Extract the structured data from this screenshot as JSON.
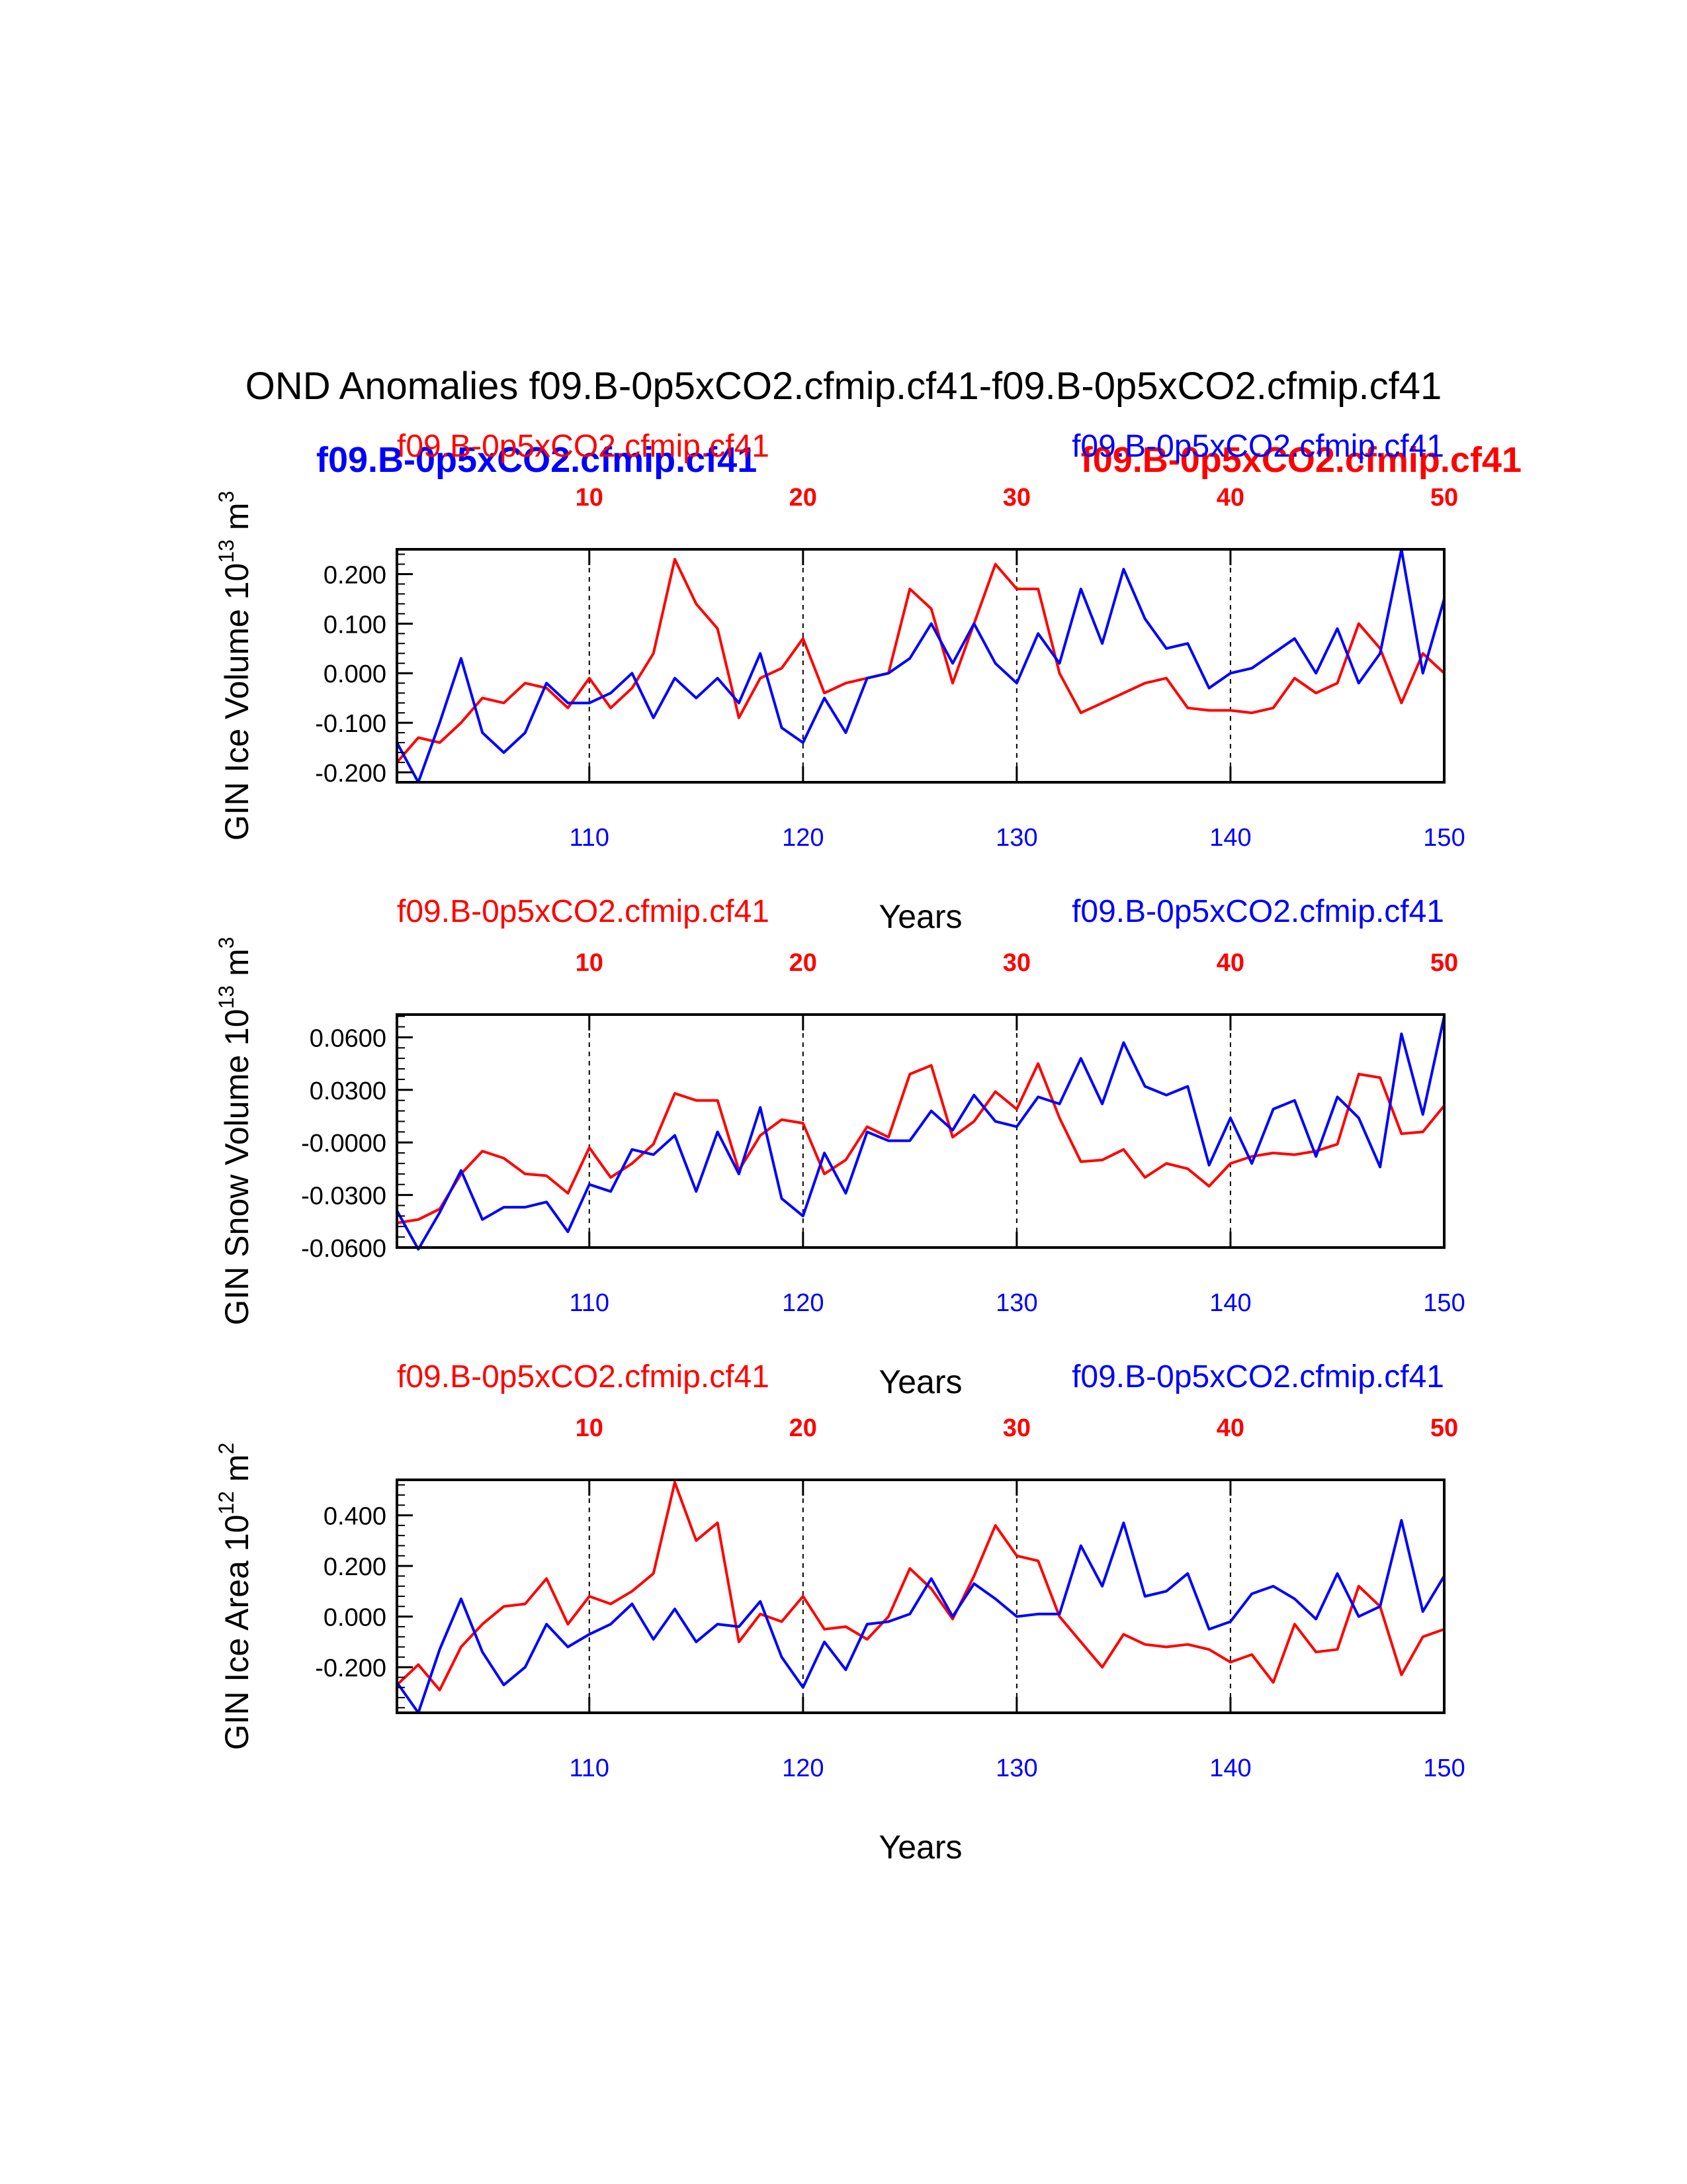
{
  "title": "OND Anomalies f09.B-0p5xCO2.cfmip.cf41-f09.B-0p5xCO2.cfmip.cf41",
  "colors": {
    "case1": "#ff0000",
    "case2": "#0000ff",
    "axis": "#000000"
  },
  "bold_labels": {
    "case2": "f09.B-0p5xCO2.cfmip.cf41",
    "case1": "f09.B-0p5xCO2.cfmip.cf41"
  },
  "chart_data": [
    {
      "type": "line",
      "panel": "ice-volume",
      "ylabel": "GIN Ice Volume 10",
      "ylabel_exp": "13",
      "ylabel_unit": " m",
      "ylabel_unit_exp": "3",
      "xlabel": "Years",
      "case1_label": "f09.B-0p5xCO2.cfmip.cf41",
      "case2_label": "f09.B-0p5xCO2.cfmip.cf41",
      "xlim_bottom": [
        101,
        150
      ],
      "xlim_top": [
        1,
        50
      ],
      "bottom_ticks": [
        "110",
        "120",
        "130",
        "140",
        "150"
      ],
      "top_ticks": [
        "10",
        "20",
        "30",
        "40",
        "50"
      ],
      "ylim": [
        -0.22,
        0.25
      ],
      "yticks": [
        -0.2,
        -0.1,
        0.0,
        0.1,
        0.2
      ],
      "ytick_labels": [
        "-0.200",
        "-0.100",
        "0.000",
        "0.100",
        "0.200"
      ],
      "yminor_step": 0.02,
      "series": [
        {
          "name": "f09.B-0p5xCO2.cfmip.cf41",
          "color": "red",
          "values": [
            -0.18,
            -0.13,
            -0.14,
            -0.1,
            -0.05,
            -0.06,
            -0.02,
            -0.03,
            -0.07,
            -0.01,
            -0.07,
            -0.03,
            0.04,
            0.23,
            0.14,
            0.09,
            -0.09,
            -0.01,
            0.01,
            0.07,
            -0.04,
            -0.02,
            -0.01,
            0.0,
            0.17,
            0.13,
            -0.02,
            0.1,
            0.22,
            0.17,
            0.17,
            0.0,
            -0.08,
            -0.06,
            -0.04,
            -0.02,
            -0.01,
            -0.07,
            -0.075,
            -0.075,
            -0.08,
            -0.07,
            -0.01,
            -0.04,
            -0.02,
            0.1,
            0.05,
            -0.06,
            0.04,
            0.0
          ]
        },
        {
          "name": "f09.B-0p5xCO2.cfmip.cf41",
          "color": "blue",
          "values": [
            -0.14,
            -0.22,
            -0.1,
            0.03,
            -0.12,
            -0.16,
            -0.12,
            -0.02,
            -0.06,
            -0.06,
            -0.04,
            0.0,
            -0.09,
            -0.01,
            -0.05,
            -0.01,
            -0.06,
            0.04,
            -0.11,
            -0.14,
            -0.05,
            -0.12,
            -0.01,
            0.0,
            0.03,
            0.1,
            0.02,
            0.1,
            0.02,
            -0.02,
            0.08,
            0.02,
            0.17,
            0.06,
            0.21,
            0.11,
            0.05,
            0.06,
            -0.03,
            0.0,
            0.01,
            0.04,
            0.07,
            0.0,
            0.09,
            -0.02,
            0.04,
            0.25,
            0.0,
            0.15
          ]
        }
      ]
    },
    {
      "type": "line",
      "panel": "snow-volume",
      "ylabel": "GIN Snow Volume 10",
      "ylabel_exp": "13",
      "ylabel_unit": " m",
      "ylabel_unit_exp": "3",
      "xlabel": "Years",
      "case1_label": "f09.B-0p5xCO2.cfmip.cf41",
      "case2_label": "f09.B-0p5xCO2.cfmip.cf41",
      "xlim_bottom": [
        101,
        150
      ],
      "xlim_top": [
        1,
        50
      ],
      "bottom_ticks": [
        "110",
        "120",
        "130",
        "140",
        "150"
      ],
      "top_ticks": [
        "10",
        "20",
        "30",
        "40",
        "50"
      ],
      "ylim": [
        -0.06,
        0.073
      ],
      "yticks": [
        -0.06,
        -0.03,
        0.0,
        0.03,
        0.06
      ],
      "ytick_labels": [
        "-0.0600",
        "-0.0300",
        "-0.0000",
        "0.0300",
        "0.0600"
      ],
      "yminor_step": 0.006,
      "series": [
        {
          "name": "f09.B-0p5xCO2.cfmip.cf41",
          "color": "red",
          "values": [
            -0.046,
            -0.044,
            -0.038,
            -0.018,
            -0.005,
            -0.009,
            -0.018,
            -0.019,
            -0.029,
            -0.003,
            -0.02,
            -0.012,
            -0.001,
            0.028,
            0.024,
            0.024,
            -0.016,
            0.004,
            0.013,
            0.011,
            -0.018,
            -0.01,
            0.009,
            0.003,
            0.039,
            0.044,
            0.003,
            0.012,
            0.029,
            0.019,
            0.045,
            0.014,
            -0.011,
            -0.01,
            -0.004,
            -0.02,
            -0.012,
            -0.015,
            -0.025,
            -0.012,
            -0.008,
            -0.006,
            -0.007,
            -0.005,
            -0.001,
            0.039,
            0.037,
            0.005,
            0.006,
            0.021
          ]
        },
        {
          "name": "f09.B-0p5xCO2.cfmip.cf41",
          "color": "blue",
          "values": [
            -0.039,
            -0.061,
            -0.04,
            -0.016,
            -0.044,
            -0.037,
            -0.037,
            -0.034,
            -0.051,
            -0.024,
            -0.028,
            -0.004,
            -0.007,
            0.004,
            -0.028,
            0.006,
            -0.018,
            0.02,
            -0.032,
            -0.042,
            -0.006,
            -0.029,
            0.006,
            0.001,
            0.001,
            0.018,
            0.007,
            0.027,
            0.012,
            0.009,
            0.026,
            0.022,
            0.048,
            0.022,
            0.057,
            0.032,
            0.027,
            0.032,
            -0.013,
            0.014,
            -0.012,
            0.019,
            0.024,
            -0.008,
            0.026,
            0.014,
            -0.014,
            0.062,
            0.016,
            0.072
          ]
        }
      ]
    },
    {
      "type": "line",
      "panel": "ice-area",
      "ylabel": "GIN Ice Area 10",
      "ylabel_exp": "12",
      "ylabel_unit": " m",
      "ylabel_unit_exp": "2",
      "xlabel": "Years",
      "case1_label": "f09.B-0p5xCO2.cfmip.cf41",
      "case2_label": "f09.B-0p5xCO2.cfmip.cf41",
      "xlim_bottom": [
        101,
        150
      ],
      "xlim_top": [
        1,
        50
      ],
      "bottom_ticks": [
        "110",
        "120",
        "130",
        "140",
        "150"
      ],
      "top_ticks": [
        "10",
        "20",
        "30",
        "40",
        "50"
      ],
      "ylim": [
        -0.38,
        0.54
      ],
      "yticks": [
        -0.2,
        0.0,
        0.2,
        0.4
      ],
      "ytick_labels": [
        "-0.200",
        "0.000",
        "0.200",
        "0.400"
      ],
      "yminor_step": 0.04,
      "series": [
        {
          "name": "f09.B-0p5xCO2.cfmip.cf41",
          "color": "red",
          "values": [
            -0.27,
            -0.19,
            -0.29,
            -0.12,
            -0.03,
            0.04,
            0.05,
            0.15,
            -0.03,
            0.08,
            0.05,
            0.1,
            0.17,
            0.53,
            0.3,
            0.37,
            -0.1,
            0.01,
            -0.02,
            0.08,
            -0.05,
            -0.04,
            -0.09,
            0.0,
            0.19,
            0.11,
            -0.01,
            0.16,
            0.36,
            0.24,
            0.22,
            0.0,
            -0.1,
            -0.2,
            -0.07,
            -0.11,
            -0.12,
            -0.11,
            -0.13,
            -0.18,
            -0.15,
            -0.26,
            -0.03,
            -0.14,
            -0.13,
            0.12,
            0.04,
            -0.23,
            -0.08,
            -0.05
          ]
        },
        {
          "name": "f09.B-0p5xCO2.cfmip.cf41",
          "color": "blue",
          "values": [
            -0.26,
            -0.38,
            -0.13,
            0.07,
            -0.14,
            -0.27,
            -0.2,
            -0.03,
            -0.12,
            -0.07,
            -0.03,
            0.05,
            -0.09,
            0.03,
            -0.1,
            -0.03,
            -0.04,
            0.06,
            -0.16,
            -0.28,
            -0.1,
            -0.21,
            -0.03,
            -0.02,
            0.01,
            0.15,
            0.0,
            0.13,
            0.07,
            0.0,
            0.01,
            0.01,
            0.28,
            0.12,
            0.37,
            0.08,
            0.1,
            0.17,
            -0.05,
            -0.02,
            0.09,
            0.12,
            0.07,
            -0.01,
            0.17,
            0.0,
            0.04,
            0.38,
            0.02,
            0.16
          ]
        }
      ]
    }
  ]
}
